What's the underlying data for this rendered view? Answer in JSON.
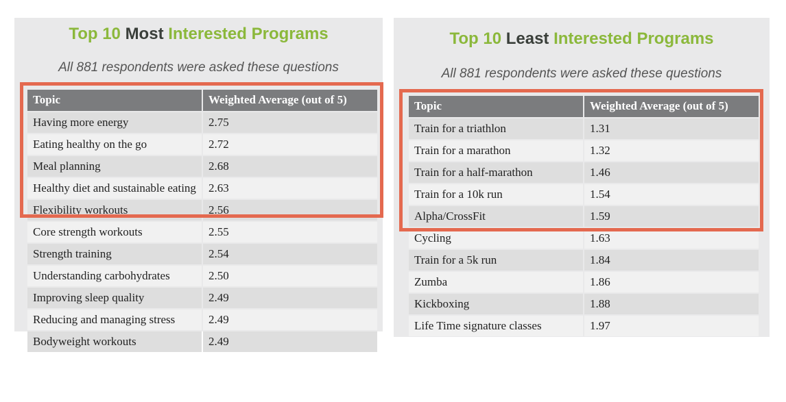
{
  "left": {
    "title": {
      "pre": "Top 10 ",
      "emph": "Most",
      "post": " Interested Programs"
    },
    "subtitle": "All 881 respondents were asked these questions",
    "headers": [
      "Topic",
      "Weighted Average (out of 5)"
    ],
    "rows": [
      [
        "Having more energy",
        "2.75"
      ],
      [
        "Eating healthy on the go",
        "2.72"
      ],
      [
        "Meal planning",
        "2.68"
      ],
      [
        "Healthy diet and sustainable eating",
        "2.63"
      ],
      [
        "Flexibility workouts",
        "2.56"
      ],
      [
        "Core strength workouts",
        "2.55"
      ],
      [
        "Strength training",
        "2.54"
      ],
      [
        "Understanding carbohydrates",
        "2.50"
      ],
      [
        "Improving sleep quality",
        "2.49"
      ],
      [
        "Reducing and managing stress",
        "2.49"
      ],
      [
        "Bodyweight workouts",
        "2.49"
      ]
    ]
  },
  "right": {
    "title": {
      "pre": "Top 10 ",
      "emph": "Least",
      "post": " Interested Programs"
    },
    "subtitle": "All 881 respondents were asked these questions",
    "headers": [
      "Topic",
      "Weighted Average (out of 5)"
    ],
    "rows": [
      [
        "Train for a triathlon",
        "1.31"
      ],
      [
        "Train for a marathon",
        "1.32"
      ],
      [
        "Train for a half-marathon",
        "1.46"
      ],
      [
        "Train for a 10k run",
        "1.54"
      ],
      [
        "Alpha/CrossFit",
        "1.59"
      ],
      [
        "Cycling",
        "1.63"
      ],
      [
        "Train for a 5k run",
        "1.84"
      ],
      [
        "Zumba",
        "1.86"
      ],
      [
        "Kickboxing",
        "1.88"
      ],
      [
        "Life Time signature classes",
        "1.97"
      ]
    ]
  },
  "colors": {
    "title_green": "#8bb83b",
    "title_dark": "#3a3f3a",
    "header_bg": "#7b7c7e",
    "row_dark": "#dedede",
    "row_light": "#f1f1f1",
    "highlight_border": "#e4694f",
    "panel_bg": "#e9e9ea"
  }
}
